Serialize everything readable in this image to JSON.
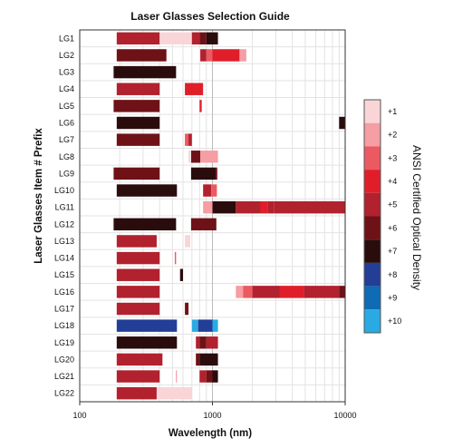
{
  "chart_data": {
    "type": "heatmap",
    "title": "Laser Glasses Selection Guide",
    "xlabel": "Wavelength (nm)",
    "ylabel": "Laser Glasses Item # Prefix",
    "xscale": "log",
    "xlim": [
      100,
      10000
    ],
    "x_ticks": [
      100,
      1000,
      10000
    ],
    "x_tick_labels": [
      "100",
      "1000",
      "10000"
    ],
    "grid": true,
    "colorbar": {
      "title": "ANSI Certified Optical Density",
      "placement": "right",
      "levels": [
        "+1",
        "+2",
        "+3",
        "+4",
        "+5",
        "+6",
        "+7",
        "+8",
        "+9",
        "+10"
      ],
      "colors": [
        "#f9d5d8",
        "#f59ea3",
        "#eb5a61",
        "#e01e2a",
        "#b1212e",
        "#6e1217",
        "#2a0c0d",
        "#233e96",
        "#0e6cb6",
        "#2aaae2"
      ]
    },
    "rows": [
      {
        "name": "LG1",
        "bands": [
          [
            190,
            400,
            5
          ],
          [
            400,
            700,
            1
          ],
          [
            700,
            800,
            5
          ],
          [
            800,
            900,
            6
          ],
          [
            900,
            1100,
            7
          ]
        ]
      },
      {
        "name": "LG2",
        "bands": [
          [
            190,
            450,
            6
          ],
          [
            810,
            900,
            5
          ],
          [
            900,
            1000,
            3
          ],
          [
            1000,
            1600,
            4
          ],
          [
            1600,
            1800,
            2
          ]
        ]
      },
      {
        "name": "LG3",
        "bands": [
          [
            180,
            532,
            7
          ]
        ]
      },
      {
        "name": "LG4",
        "bands": [
          [
            190,
            400,
            5
          ],
          [
            620,
            850,
            4
          ]
        ]
      },
      {
        "name": "LG5",
        "bands": [
          [
            180,
            400,
            6
          ],
          [
            800,
            830,
            4
          ]
        ]
      },
      {
        "name": "LG6",
        "bands": [
          [
            190,
            400,
            7
          ],
          [
            9000,
            11000,
            7
          ]
        ]
      },
      {
        "name": "LG7",
        "bands": [
          [
            190,
            400,
            6
          ],
          [
            620,
            660,
            3
          ],
          [
            660,
            700,
            5
          ]
        ]
      },
      {
        "name": "LG8",
        "bands": [
          [
            660,
            680,
            1
          ],
          [
            690,
            810,
            6
          ],
          [
            810,
            1100,
            2
          ]
        ]
      },
      {
        "name": "LG9",
        "bands": [
          [
            180,
            400,
            6
          ],
          [
            690,
            1070,
            7
          ],
          [
            1070,
            1090,
            5
          ]
        ]
      },
      {
        "name": "LG10",
        "bands": [
          [
            190,
            540,
            7
          ],
          [
            850,
            980,
            5
          ],
          [
            980,
            1080,
            3
          ]
        ]
      },
      {
        "name": "LG11",
        "bands": [
          [
            850,
            1000,
            2
          ],
          [
            1000,
            1500,
            7
          ],
          [
            1500,
            2300,
            5
          ],
          [
            2300,
            2600,
            4
          ],
          [
            2600,
            2900,
            5
          ],
          [
            2900,
            10000,
            5
          ]
        ]
      },
      {
        "name": "LG12",
        "bands": [
          [
            180,
            532,
            7
          ],
          [
            690,
            1070,
            6
          ]
        ]
      },
      {
        "name": "LG13",
        "bands": [
          [
            190,
            380,
            5
          ],
          [
            620,
            680,
            1
          ]
        ]
      },
      {
        "name": "LG14",
        "bands": [
          [
            190,
            400,
            5
          ],
          [
            520,
            532,
            3
          ]
        ]
      },
      {
        "name": "LG15",
        "bands": [
          [
            190,
            400,
            5
          ],
          [
            570,
            600,
            7
          ]
        ]
      },
      {
        "name": "LG16",
        "bands": [
          [
            190,
            400,
            5
          ],
          [
            1500,
            1700,
            2
          ],
          [
            1700,
            2000,
            3
          ],
          [
            2000,
            3200,
            5
          ],
          [
            3200,
            4900,
            4
          ],
          [
            4900,
            9000,
            5
          ],
          [
            9000,
            11000,
            6
          ]
        ]
      },
      {
        "name": "LG17",
        "bands": [
          [
            190,
            400,
            5
          ],
          [
            620,
            660,
            6
          ]
        ]
      },
      {
        "name": "LG18",
        "bands": [
          [
            190,
            540,
            8
          ],
          [
            700,
            780,
            10
          ],
          [
            780,
            1000,
            8
          ],
          [
            1000,
            1100,
            10
          ]
        ]
      },
      {
        "name": "LG19",
        "bands": [
          [
            190,
            540,
            7
          ],
          [
            750,
            800,
            5
          ],
          [
            800,
            900,
            6
          ],
          [
            900,
            1100,
            5
          ]
        ]
      },
      {
        "name": "LG20",
        "bands": [
          [
            190,
            420,
            5
          ],
          [
            750,
            800,
            6
          ],
          [
            800,
            1100,
            7
          ]
        ]
      },
      {
        "name": "LG21",
        "bands": [
          [
            190,
            400,
            5
          ],
          [
            530,
            540,
            2
          ],
          [
            800,
            900,
            5
          ],
          [
            900,
            1000,
            6
          ],
          [
            1000,
            1100,
            7
          ]
        ]
      },
      {
        "name": "LG22",
        "bands": [
          [
            190,
            380,
            5
          ],
          [
            380,
            700,
            1
          ]
        ]
      }
    ]
  }
}
